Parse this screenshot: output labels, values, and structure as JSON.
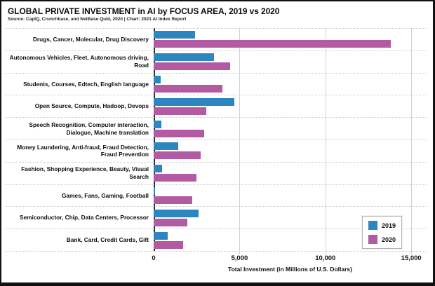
{
  "header": {
    "title": "GLOBAL PRIVATE INVESTMENT in AI by FOCUS AREA, 2019 vs 2020",
    "source": "Source: CapIQ, Crunchbase, and NetBase Quid, 2020 | Chart: 2021 AI Index Report"
  },
  "colors": {
    "series_2019": "#2E86C1",
    "series_2020": "#B25BA3",
    "axis_line": "#2B2B2B",
    "gridline": "#D2D2D2",
    "row_separator": "#C9C9C9",
    "legend_border": "#B5B5B5"
  },
  "chart_data": {
    "type": "bar",
    "orientation": "horizontal",
    "title": "GLOBAL PRIVATE INVESTMENT in AI by FOCUS AREA, 2019 vs 2020",
    "subtitle": "Source: CapIQ, Crunchbase, and NetBase Quid, 2020 | Chart: 2021 AI Index Report",
    "xlabel": "Total Investment (in Millions of U.S. Dollars)",
    "ylabel": "",
    "xlim": [
      0,
      15800
    ],
    "grid": "vertical-solid-gridlines-and-dotted-row-separators",
    "legend_position": "bottom-right",
    "categories": [
      "Drugs, Cancer, Molecular, Drug Discovery",
      "Autonomous Vehicles, Fleet, Autonomous driving, Road",
      "Students, Courses, Edtech, English language",
      "Open Source, Compute, Hadoop, Devops",
      "Speech Recognition, Computer interaction, Dialogue, Machine translation",
      "Money Laundering, Anti-fraud, Fraud Detection, Fraud Prevention",
      "Fashion, Shopping Experience, Beauty, Visual Search",
      "Games, Fans, Gaming, Football",
      "Semiconductor, Chip, Data Centers, Processor",
      "Bank, Card, Credit Cards, Gift"
    ],
    "series": [
      {
        "name": "2019",
        "color": "#2E86C1",
        "values": [
          2400,
          3500,
          420,
          4700,
          450,
          1450,
          500,
          80,
          2600,
          820
        ]
      },
      {
        "name": "2020",
        "color": "#B25BA3",
        "values": [
          13800,
          4450,
          4000,
          3050,
          2950,
          2750,
          2500,
          2250,
          1950,
          1700
        ]
      }
    ],
    "xticks": [
      {
        "value": 0,
        "label": "0"
      },
      {
        "value": 5000,
        "label": "5,000"
      },
      {
        "value": 10000,
        "label": "10,000"
      },
      {
        "value": 15000,
        "label": "15,000"
      }
    ]
  }
}
